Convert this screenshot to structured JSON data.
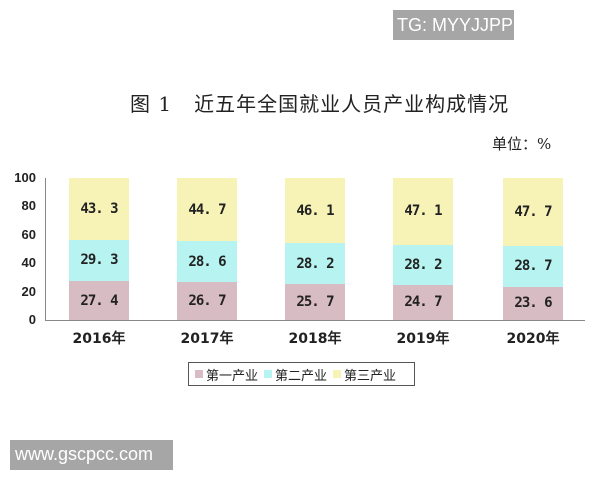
{
  "watermarks": {
    "top_right": "TG: MYYJJPP",
    "bottom_left": "www.gscpcc.com"
  },
  "title": "图 1   近五年全国就业人员产业构成情况",
  "unit_label": "单位：%",
  "legend": [
    {
      "label": "第一产业",
      "color": "#d7bcc3"
    },
    {
      "label": "第二产业",
      "color": "#b7f4f1"
    },
    {
      "label": "第三产业",
      "color": "#f7f3b7"
    }
  ],
  "chart_data": {
    "type": "bar",
    "stacked": true,
    "title": "图 1 近五年全国就业人员产业构成情况",
    "unit": "%",
    "categories": [
      "2016年",
      "2017年",
      "2018年",
      "2019年",
      "2020年"
    ],
    "series": [
      {
        "name": "第一产业",
        "color": "#d7bcc3",
        "values": [
          27.4,
          26.7,
          25.7,
          24.7,
          23.6
        ]
      },
      {
        "name": "第二产业",
        "color": "#b7f4f1",
        "values": [
          29.3,
          28.6,
          28.2,
          28.2,
          28.7
        ]
      },
      {
        "name": "第三产业",
        "color": "#f7f3b7",
        "values": [
          43.3,
          44.7,
          46.1,
          47.1,
          47.7
        ]
      }
    ],
    "xlabel": "",
    "ylabel": "",
    "ylim": [
      0,
      100
    ],
    "yticks": [
      0,
      20,
      40,
      60,
      80,
      100
    ],
    "grid": false,
    "legend_position": "bottom"
  }
}
